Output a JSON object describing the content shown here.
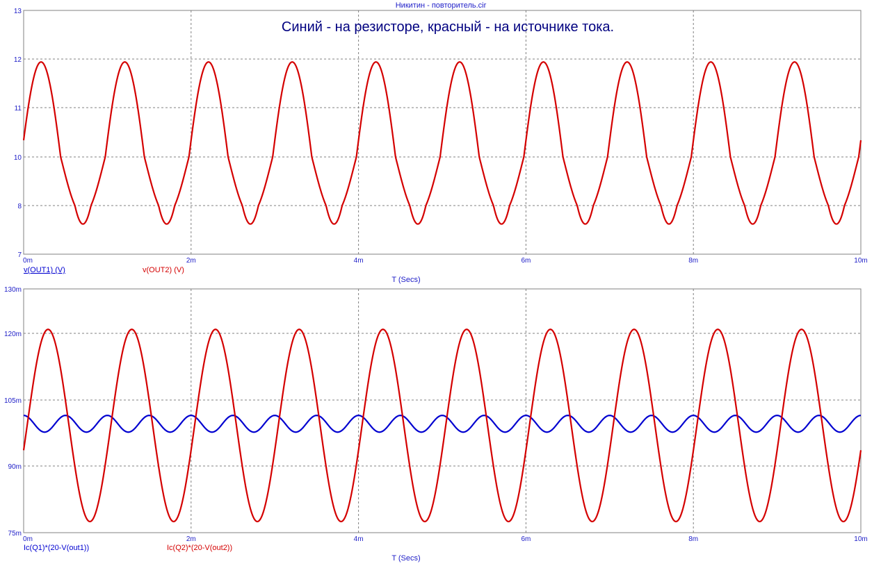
{
  "window_title": "Никитин - повторитель.cir",
  "annotation": "Синий - на резисторе, красный - на источнике тока.",
  "colors": {
    "blue": "#0000d0",
    "red": "#d40000",
    "grid": "#808080",
    "text": "#2020c8"
  },
  "chart_data": [
    {
      "type": "line",
      "xlabel": "T (Secs)",
      "x_tick_labels": [
        "0m",
        "2m",
        "4m",
        "6m",
        "8m",
        "10m"
      ],
      "y_tick_labels": [
        "13",
        "12",
        "11",
        "10",
        "8",
        "7"
      ],
      "xlim": [
        0,
        10
      ],
      "x_unit": "ms",
      "grid": true,
      "series": [
        {
          "name": "v(OUT1) (V)",
          "color": "#0000d0",
          "visible_line": false,
          "waveform": {
            "offset": 9.78,
            "amplitude": 2.16,
            "frequency_per_ms": 1,
            "phase_deg": 15
          }
        },
        {
          "name": "v(OUT2) (V)",
          "color": "#d40000",
          "visible_line": true,
          "waveform": {
            "offset": 9.78,
            "amplitude": 2.16,
            "frequency_per_ms": 1,
            "phase_deg": 15
          }
        }
      ]
    },
    {
      "type": "line",
      "xlabel": "T (Secs)",
      "x_tick_labels": [
        "0m",
        "2m",
        "4m",
        "6m",
        "8m",
        "10m"
      ],
      "y_tick_labels": [
        "130m",
        "120m",
        "105m",
        "90m",
        "75m"
      ],
      "xlim": [
        0,
        10
      ],
      "x_unit": "ms",
      "grid": true,
      "series": [
        {
          "name": "Ic(Q1)*(20-V(out1))",
          "color": "#0000d0",
          "visible_line": true,
          "waveform": {
            "offset": 99.6,
            "amplitude": 1.9,
            "frequency_per_ms": 2,
            "phase_deg": 90
          }
        },
        {
          "name": "Ic(Q2)*(20-V(out2))",
          "color": "#d40000",
          "visible_line": true,
          "waveform": {
            "offset": 99.2,
            "amplitude": 21.7,
            "frequency_per_ms": 1,
            "phase_deg": -15
          }
        }
      ]
    }
  ]
}
